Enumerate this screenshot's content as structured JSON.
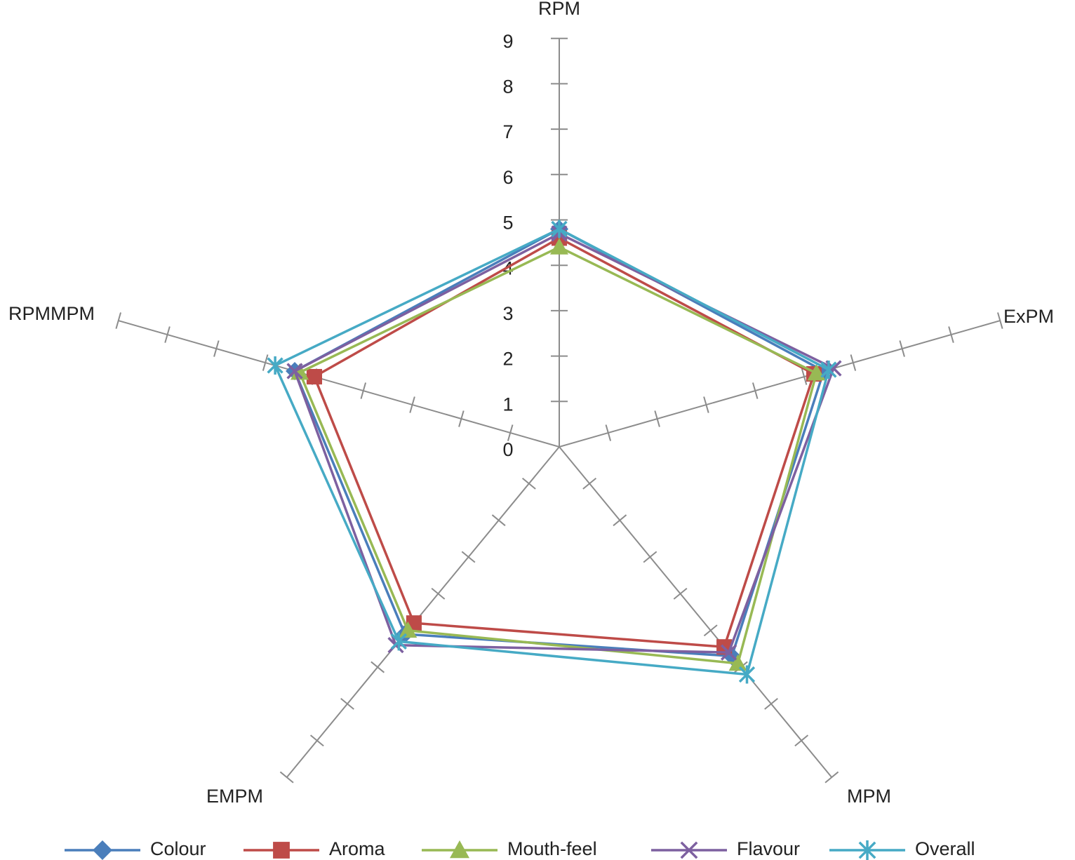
{
  "chart_data": {
    "type": "radar",
    "categories": [
      "RPM",
      "ExPM",
      "MPM",
      "EMPM",
      "RPMMPM"
    ],
    "ylim": [
      0,
      9
    ],
    "yticks": [
      0,
      1,
      2,
      3,
      4,
      5,
      6,
      7,
      8,
      9
    ],
    "series": [
      {
        "name": "Colour",
        "color": "#4a7ebb",
        "marker": "diamond",
        "values": [
          4.8,
          5.4,
          5.7,
          5.1,
          5.4
        ]
      },
      {
        "name": "Aroma",
        "color": "#be4b48",
        "marker": "square",
        "values": [
          4.6,
          5.2,
          5.45,
          4.8,
          5.0
        ]
      },
      {
        "name": "Mouth-feel",
        "color": "#98b954",
        "marker": "triangle",
        "values": [
          4.4,
          5.25,
          5.9,
          5.0,
          5.3
        ]
      },
      {
        "name": "Flavour",
        "color": "#7d60a0",
        "marker": "x",
        "values": [
          4.7,
          5.6,
          5.6,
          5.4,
          5.4
        ]
      },
      {
        "name": "Overall",
        "color": "#46aac5",
        "marker": "asterisk",
        "values": [
          4.8,
          5.5,
          6.2,
          5.3,
          5.8
        ]
      }
    ],
    "legend": "bottom"
  }
}
